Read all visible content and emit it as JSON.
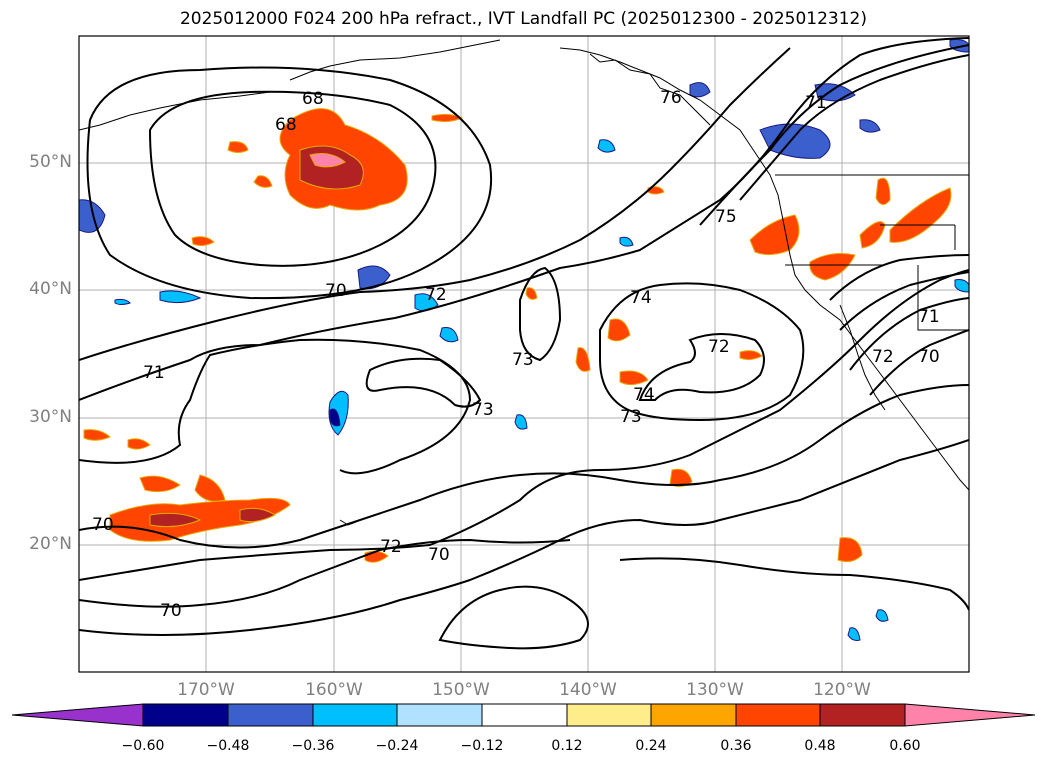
{
  "title": "2025012000 F024 200 hPa refract., IVT Landfall PC (2025012300 - 2025012312)",
  "map": {
    "lat_labels": [
      "50°N",
      "40°N",
      "30°N",
      "20°N"
    ],
    "lon_labels": [
      "170°W",
      "160°W",
      "150°W",
      "140°W",
      "130°W",
      "120°W"
    ],
    "contour_labels": [
      "68",
      "68",
      "70",
      "71",
      "72",
      "73",
      "73",
      "74",
      "74",
      "73",
      "72",
      "75",
      "76",
      "71",
      "72",
      "70",
      "70",
      "70",
      "70",
      "72",
      "71"
    ]
  },
  "colorbar": {
    "ticks": [
      "−0.60",
      "−0.48",
      "−0.36",
      "−0.24",
      "−0.12",
      "0.12",
      "0.24",
      "0.36",
      "0.48",
      "0.60"
    ],
    "colors": [
      "#9932cc",
      "#00008b",
      "#3b5fcc",
      "#00bfff",
      "#b0e2ff",
      "#ffffff",
      "#ffec8b",
      "#ffa500",
      "#ff4500",
      "#b22222",
      "#ff82ab"
    ]
  }
}
